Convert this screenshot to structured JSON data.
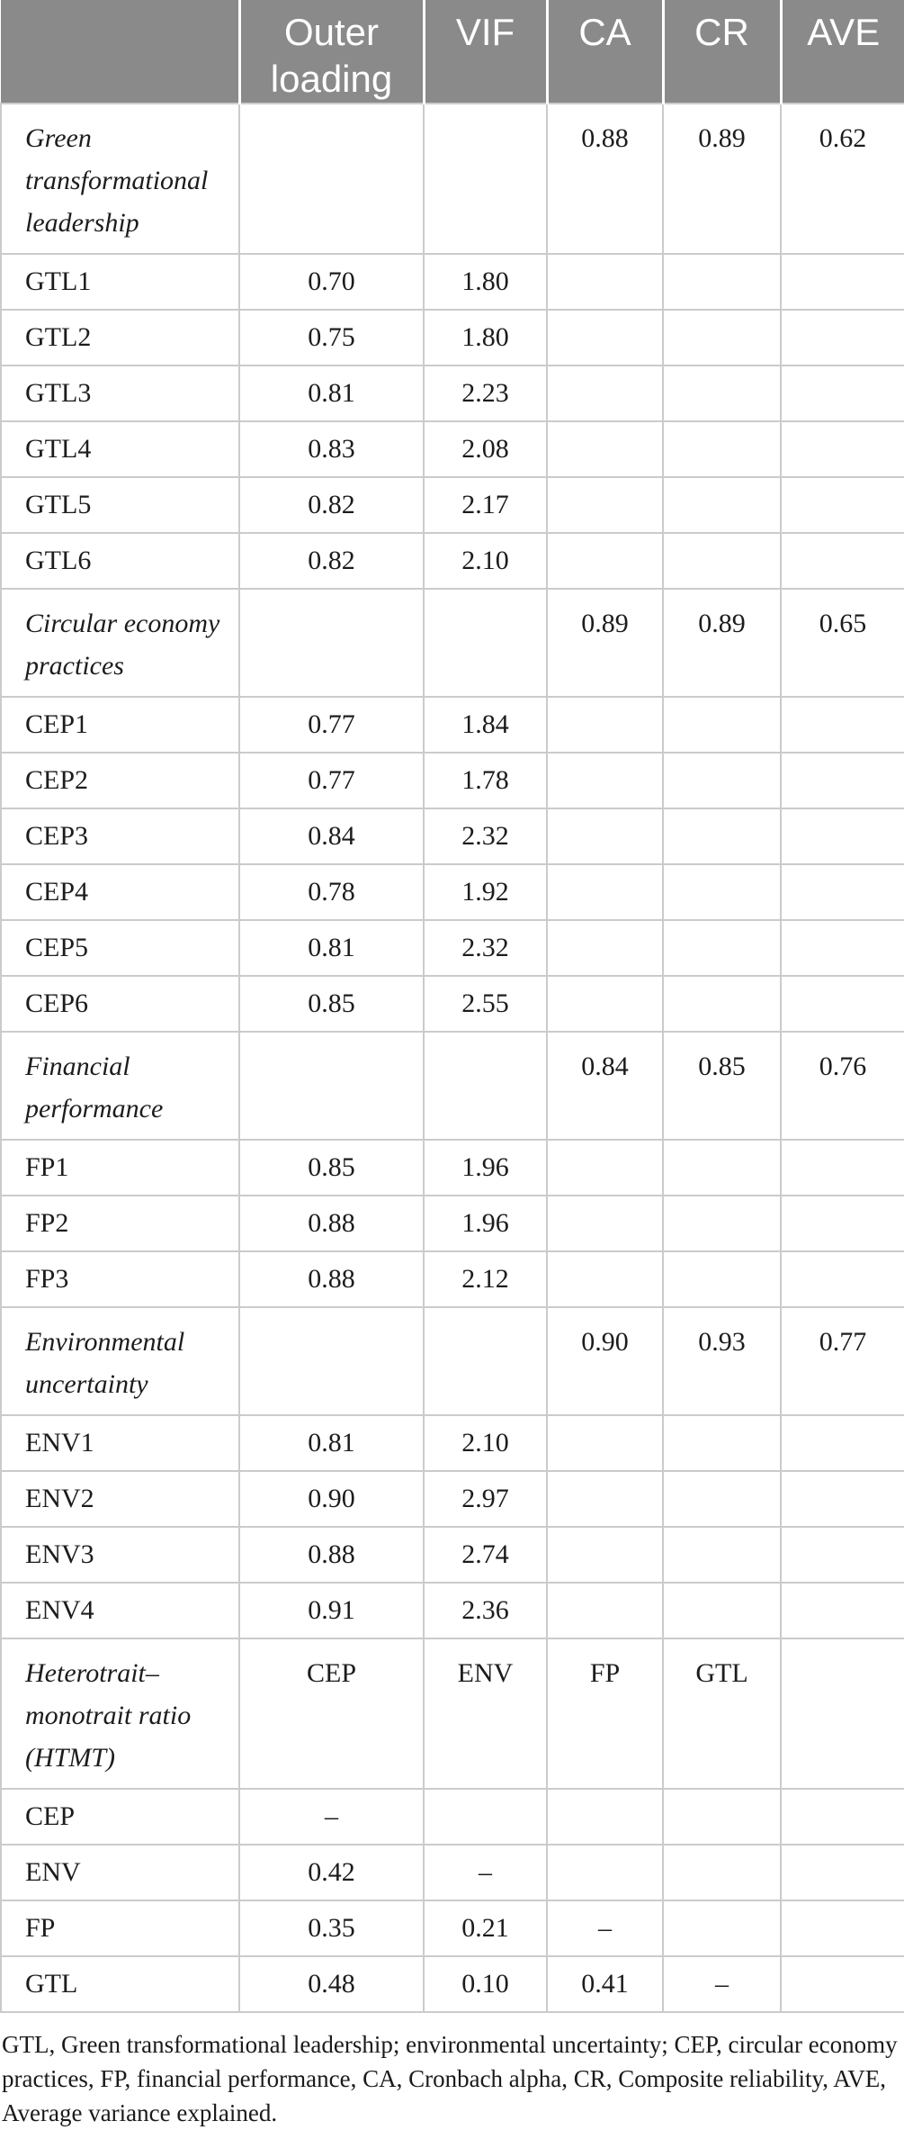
{
  "colors": {
    "header_bg": "#8a8a8a",
    "header_text": "#ffffff",
    "grid_line": "#cbcbcb",
    "body_text": "#1c1c1c"
  },
  "table": {
    "columns": [
      "",
      "Outer loading",
      "VIF",
      "CA",
      "CR",
      "AVE"
    ],
    "rows": [
      {
        "label": "Green transformational leadership",
        "section": true,
        "values": [
          "",
          "",
          "0.88",
          "0.89",
          "0.62"
        ]
      },
      {
        "label": "GTL1",
        "section": false,
        "values": [
          "0.70",
          "1.80",
          "",
          "",
          ""
        ]
      },
      {
        "label": "GTL2",
        "section": false,
        "values": [
          "0.75",
          "1.80",
          "",
          "",
          ""
        ]
      },
      {
        "label": "GTL3",
        "section": false,
        "values": [
          "0.81",
          "2.23",
          "",
          "",
          ""
        ]
      },
      {
        "label": "GTL4",
        "section": false,
        "values": [
          "0.83",
          "2.08",
          "",
          "",
          ""
        ]
      },
      {
        "label": "GTL5",
        "section": false,
        "values": [
          "0.82",
          "2.17",
          "",
          "",
          ""
        ]
      },
      {
        "label": "GTL6",
        "section": false,
        "values": [
          "0.82",
          "2.10",
          "",
          "",
          ""
        ]
      },
      {
        "label": "Circular economy practices",
        "section": true,
        "values": [
          "",
          "",
          "0.89",
          "0.89",
          "0.65"
        ]
      },
      {
        "label": "CEP1",
        "section": false,
        "values": [
          "0.77",
          "1.84",
          "",
          "",
          ""
        ]
      },
      {
        "label": "CEP2",
        "section": false,
        "values": [
          "0.77",
          "1.78",
          "",
          "",
          ""
        ]
      },
      {
        "label": "CEP3",
        "section": false,
        "values": [
          "0.84",
          "2.32",
          "",
          "",
          ""
        ]
      },
      {
        "label": "CEP4",
        "section": false,
        "values": [
          "0.78",
          "1.92",
          "",
          "",
          ""
        ]
      },
      {
        "label": "CEP5",
        "section": false,
        "values": [
          "0.81",
          "2.32",
          "",
          "",
          ""
        ]
      },
      {
        "label": "CEP6",
        "section": false,
        "values": [
          "0.85",
          "2.55",
          "",
          "",
          ""
        ]
      },
      {
        "label": "Financial performance",
        "section": true,
        "values": [
          "",
          "",
          "0.84",
          "0.85",
          "0.76"
        ]
      },
      {
        "label": "FP1",
        "section": false,
        "values": [
          "0.85",
          "1.96",
          "",
          "",
          ""
        ]
      },
      {
        "label": "FP2",
        "section": false,
        "values": [
          "0.88",
          "1.96",
          "",
          "",
          ""
        ]
      },
      {
        "label": "FP3",
        "section": false,
        "values": [
          "0.88",
          "2.12",
          "",
          "",
          ""
        ]
      },
      {
        "label": "Environmental uncertainty",
        "section": true,
        "values": [
          "",
          "",
          "0.90",
          "0.93",
          "0.77"
        ]
      },
      {
        "label": "ENV1",
        "section": false,
        "values": [
          "0.81",
          "2.10",
          "",
          "",
          ""
        ]
      },
      {
        "label": "ENV2",
        "section": false,
        "values": [
          "0.90",
          "2.97",
          "",
          "",
          ""
        ]
      },
      {
        "label": "ENV3",
        "section": false,
        "values": [
          "0.88",
          "2.74",
          "",
          "",
          ""
        ]
      },
      {
        "label": "ENV4",
        "section": false,
        "values": [
          "0.91",
          "2.36",
          "",
          "",
          ""
        ]
      },
      {
        "label": "Heterotrait–monotrait ratio (HTMT)",
        "section": true,
        "values": [
          "CEP",
          "ENV",
          "FP",
          "GTL",
          ""
        ]
      },
      {
        "label": "CEP",
        "section": false,
        "values": [
          "–",
          "",
          "",
          "",
          ""
        ]
      },
      {
        "label": "ENV",
        "section": false,
        "values": [
          "0.42",
          "–",
          "",
          "",
          ""
        ]
      },
      {
        "label": "FP",
        "section": false,
        "values": [
          "0.35",
          "0.21",
          "–",
          "",
          ""
        ]
      },
      {
        "label": "GTL",
        "section": false,
        "values": [
          "0.48",
          "0.10",
          "0.41",
          "–",
          ""
        ]
      }
    ]
  },
  "footnote": "GTL, Green transformational leadership; environmental uncertainty; CEP, circular economy practices, FP, financial performance, CA, Cronbach alpha, CR, Composite reliability, AVE, Average variance explained."
}
